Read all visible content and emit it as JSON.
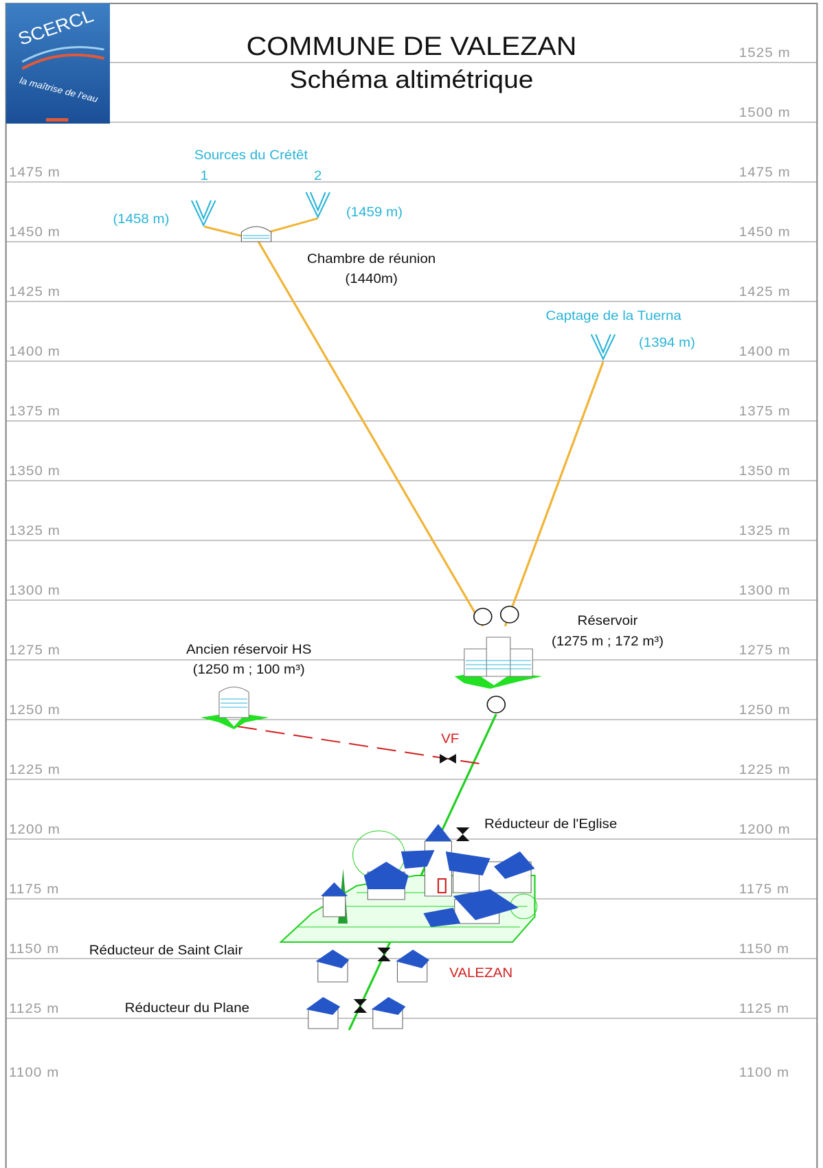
{
  "header": {
    "title": "COMMUNE DE VALEZAN",
    "subtitle": "Schéma altimétrique",
    "logo": {
      "name": "SCERCL",
      "tagline": "la maîtrise de l'eau"
    }
  },
  "levels": [
    "1525 m",
    "1500 m",
    "1475 m",
    "1450 m",
    "1425 m",
    "1400 m",
    "1375 m",
    "1350 m",
    "1325 m",
    "1300 m",
    "1275 m",
    "1250 m",
    "1225 m",
    "1200 m",
    "1175 m",
    "1150 m",
    "1125 m",
    "1100 m"
  ],
  "nodes": {
    "sources": {
      "label": "Sources du Crétêt",
      "source_1": "1",
      "source_2": "2",
      "alt_1": "(1458 m)",
      "alt_2": "(1459 m)"
    },
    "chamber": {
      "label": "Chambre de réunion",
      "alt": "(1440m)"
    },
    "tuerna": {
      "label": "Captage de la Tuerna",
      "alt": "(1394 m)"
    },
    "reservoir": {
      "label": "Réservoir",
      "detail": "(1275 m ; 172 m³)"
    },
    "old_reservoir": {
      "label": "Ancien réservoir HS",
      "detail": "(1250 m ; 100 m³)"
    },
    "valve": {
      "label": "VF"
    },
    "reducer_church": {
      "label": "Réducteur de l'Eglise"
    },
    "reducer_saint_clair": {
      "label": "Réducteur de Saint Clair"
    },
    "village": {
      "label": "VALEZAN"
    },
    "reducer_plane": {
      "label": "Réducteur du Plane"
    }
  }
}
